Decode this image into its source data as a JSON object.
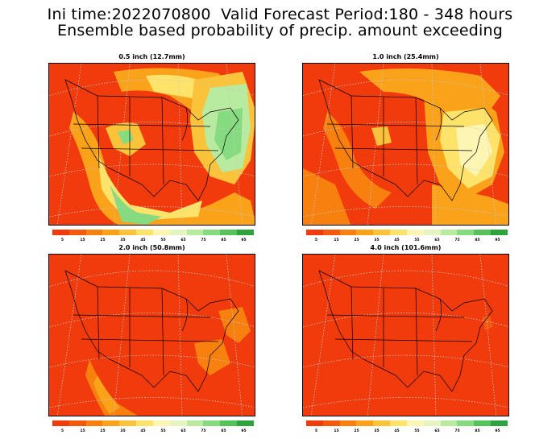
{
  "header": {
    "line1": "Ini time:2022070800  Valid Forecast Period:180 - 348 hours",
    "line2": "Ensemble based probability of precip. amount exceeding"
  },
  "panels": [
    {
      "title": "0.5 inch (12.7mm)"
    },
    {
      "title": "1.0 inch (25.4mm)"
    },
    {
      "title": "2.0 inch (50.8mm)"
    },
    {
      "title": "4.0 inch (101.6mm)"
    }
  ],
  "colorbar": {
    "colors": [
      "#f23b0c",
      "#f55a0c",
      "#f7800f",
      "#f9a21a",
      "#fbc33a",
      "#fde36a",
      "#fdf5b3",
      "#e4f5c0",
      "#b8eaa0",
      "#86da7f",
      "#55c25c",
      "#2ea33d"
    ],
    "labels": [
      "5",
      "15",
      "25",
      "35",
      "45",
      "55",
      "65",
      "75",
      "85",
      "95"
    ]
  },
  "colors": {
    "background": "#f23b0c",
    "border": "#000000",
    "grid": "#c8c8c8"
  }
}
